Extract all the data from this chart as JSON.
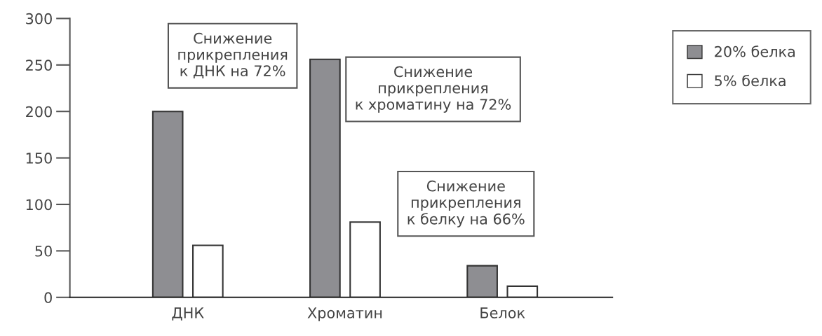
{
  "chart_data": {
    "type": "bar",
    "categories": [
      "ДНК",
      "Хроматин",
      "Белок"
    ],
    "series": [
      {
        "name": "20% белка",
        "color": "#8e8e92",
        "values": [
          200,
          256,
          34
        ]
      },
      {
        "name": "5% белка",
        "color": "#ffffff",
        "values": [
          56,
          81,
          12
        ]
      }
    ],
    "ylim": [
      0,
      300
    ],
    "yticks": [
      0,
      50,
      100,
      150,
      200,
      250,
      300
    ],
    "grid": false,
    "legend": "top right",
    "annotations": [
      "Снижение\nприкрепления\nк ДНК на 72%",
      "Снижение\nприкрепления\nк хроматину на 72%",
      "Снижение\nприкрепления\nк белку на 66%"
    ]
  }
}
